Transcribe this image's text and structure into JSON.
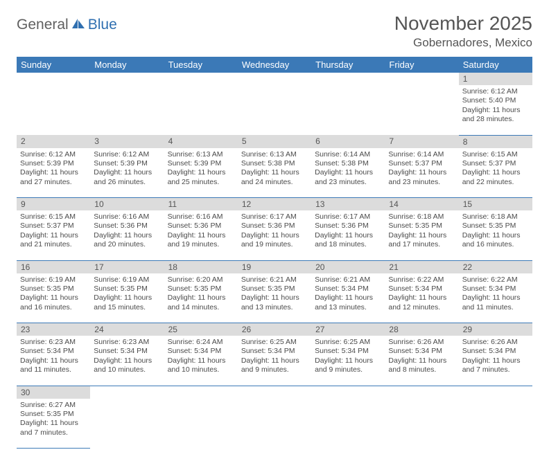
{
  "logo": {
    "part1": "General",
    "part2": "Blue"
  },
  "title": "November 2025",
  "location": "Gobernadores, Mexico",
  "colors": {
    "header_bg": "#3b79b7",
    "header_text": "#ffffff",
    "daynum_bg": "#dcdcdc",
    "border": "#3b79b7",
    "body_text": "#4a4a4a",
    "title_text": "#555555",
    "logo_gray": "#5f5f5f",
    "logo_blue": "#2f6fb0"
  },
  "day_headers": [
    "Sunday",
    "Monday",
    "Tuesday",
    "Wednesday",
    "Thursday",
    "Friday",
    "Saturday"
  ],
  "weeks": [
    {
      "nums": [
        "",
        "",
        "",
        "",
        "",
        "",
        "1"
      ],
      "cells": [
        null,
        null,
        null,
        null,
        null,
        null,
        {
          "sunrise": "6:12 AM",
          "sunset": "5:40 PM",
          "dl1": "Daylight: 11 hours",
          "dl2": "and 28 minutes."
        }
      ]
    },
    {
      "nums": [
        "2",
        "3",
        "4",
        "5",
        "6",
        "7",
        "8"
      ],
      "cells": [
        {
          "sunrise": "6:12 AM",
          "sunset": "5:39 PM",
          "dl1": "Daylight: 11 hours",
          "dl2": "and 27 minutes."
        },
        {
          "sunrise": "6:12 AM",
          "sunset": "5:39 PM",
          "dl1": "Daylight: 11 hours",
          "dl2": "and 26 minutes."
        },
        {
          "sunrise": "6:13 AM",
          "sunset": "5:39 PM",
          "dl1": "Daylight: 11 hours",
          "dl2": "and 25 minutes."
        },
        {
          "sunrise": "6:13 AM",
          "sunset": "5:38 PM",
          "dl1": "Daylight: 11 hours",
          "dl2": "and 24 minutes."
        },
        {
          "sunrise": "6:14 AM",
          "sunset": "5:38 PM",
          "dl1": "Daylight: 11 hours",
          "dl2": "and 23 minutes."
        },
        {
          "sunrise": "6:14 AM",
          "sunset": "5:37 PM",
          "dl1": "Daylight: 11 hours",
          "dl2": "and 23 minutes."
        },
        {
          "sunrise": "6:15 AM",
          "sunset": "5:37 PM",
          "dl1": "Daylight: 11 hours",
          "dl2": "and 22 minutes."
        }
      ]
    },
    {
      "nums": [
        "9",
        "10",
        "11",
        "12",
        "13",
        "14",
        "15"
      ],
      "cells": [
        {
          "sunrise": "6:15 AM",
          "sunset": "5:37 PM",
          "dl1": "Daylight: 11 hours",
          "dl2": "and 21 minutes."
        },
        {
          "sunrise": "6:16 AM",
          "sunset": "5:36 PM",
          "dl1": "Daylight: 11 hours",
          "dl2": "and 20 minutes."
        },
        {
          "sunrise": "6:16 AM",
          "sunset": "5:36 PM",
          "dl1": "Daylight: 11 hours",
          "dl2": "and 19 minutes."
        },
        {
          "sunrise": "6:17 AM",
          "sunset": "5:36 PM",
          "dl1": "Daylight: 11 hours",
          "dl2": "and 19 minutes."
        },
        {
          "sunrise": "6:17 AM",
          "sunset": "5:36 PM",
          "dl1": "Daylight: 11 hours",
          "dl2": "and 18 minutes."
        },
        {
          "sunrise": "6:18 AM",
          "sunset": "5:35 PM",
          "dl1": "Daylight: 11 hours",
          "dl2": "and 17 minutes."
        },
        {
          "sunrise": "6:18 AM",
          "sunset": "5:35 PM",
          "dl1": "Daylight: 11 hours",
          "dl2": "and 16 minutes."
        }
      ]
    },
    {
      "nums": [
        "16",
        "17",
        "18",
        "19",
        "20",
        "21",
        "22"
      ],
      "cells": [
        {
          "sunrise": "6:19 AM",
          "sunset": "5:35 PM",
          "dl1": "Daylight: 11 hours",
          "dl2": "and 16 minutes."
        },
        {
          "sunrise": "6:19 AM",
          "sunset": "5:35 PM",
          "dl1": "Daylight: 11 hours",
          "dl2": "and 15 minutes."
        },
        {
          "sunrise": "6:20 AM",
          "sunset": "5:35 PM",
          "dl1": "Daylight: 11 hours",
          "dl2": "and 14 minutes."
        },
        {
          "sunrise": "6:21 AM",
          "sunset": "5:35 PM",
          "dl1": "Daylight: 11 hours",
          "dl2": "and 13 minutes."
        },
        {
          "sunrise": "6:21 AM",
          "sunset": "5:34 PM",
          "dl1": "Daylight: 11 hours",
          "dl2": "and 13 minutes."
        },
        {
          "sunrise": "6:22 AM",
          "sunset": "5:34 PM",
          "dl1": "Daylight: 11 hours",
          "dl2": "and 12 minutes."
        },
        {
          "sunrise": "6:22 AM",
          "sunset": "5:34 PM",
          "dl1": "Daylight: 11 hours",
          "dl2": "and 11 minutes."
        }
      ]
    },
    {
      "nums": [
        "23",
        "24",
        "25",
        "26",
        "27",
        "28",
        "29"
      ],
      "cells": [
        {
          "sunrise": "6:23 AM",
          "sunset": "5:34 PM",
          "dl1": "Daylight: 11 hours",
          "dl2": "and 11 minutes."
        },
        {
          "sunrise": "6:23 AM",
          "sunset": "5:34 PM",
          "dl1": "Daylight: 11 hours",
          "dl2": "and 10 minutes."
        },
        {
          "sunrise": "6:24 AM",
          "sunset": "5:34 PM",
          "dl1": "Daylight: 11 hours",
          "dl2": "and 10 minutes."
        },
        {
          "sunrise": "6:25 AM",
          "sunset": "5:34 PM",
          "dl1": "Daylight: 11 hours",
          "dl2": "and 9 minutes."
        },
        {
          "sunrise": "6:25 AM",
          "sunset": "5:34 PM",
          "dl1": "Daylight: 11 hours",
          "dl2": "and 9 minutes."
        },
        {
          "sunrise": "6:26 AM",
          "sunset": "5:34 PM",
          "dl1": "Daylight: 11 hours",
          "dl2": "and 8 minutes."
        },
        {
          "sunrise": "6:26 AM",
          "sunset": "5:34 PM",
          "dl1": "Daylight: 11 hours",
          "dl2": "and 7 minutes."
        }
      ]
    },
    {
      "nums": [
        "30",
        "",
        "",
        "",
        "",
        "",
        ""
      ],
      "cells": [
        {
          "sunrise": "6:27 AM",
          "sunset": "5:35 PM",
          "dl1": "Daylight: 11 hours",
          "dl2": "and 7 minutes."
        },
        null,
        null,
        null,
        null,
        null,
        null
      ]
    }
  ],
  "labels": {
    "sunrise_prefix": "Sunrise: ",
    "sunset_prefix": "Sunset: "
  }
}
